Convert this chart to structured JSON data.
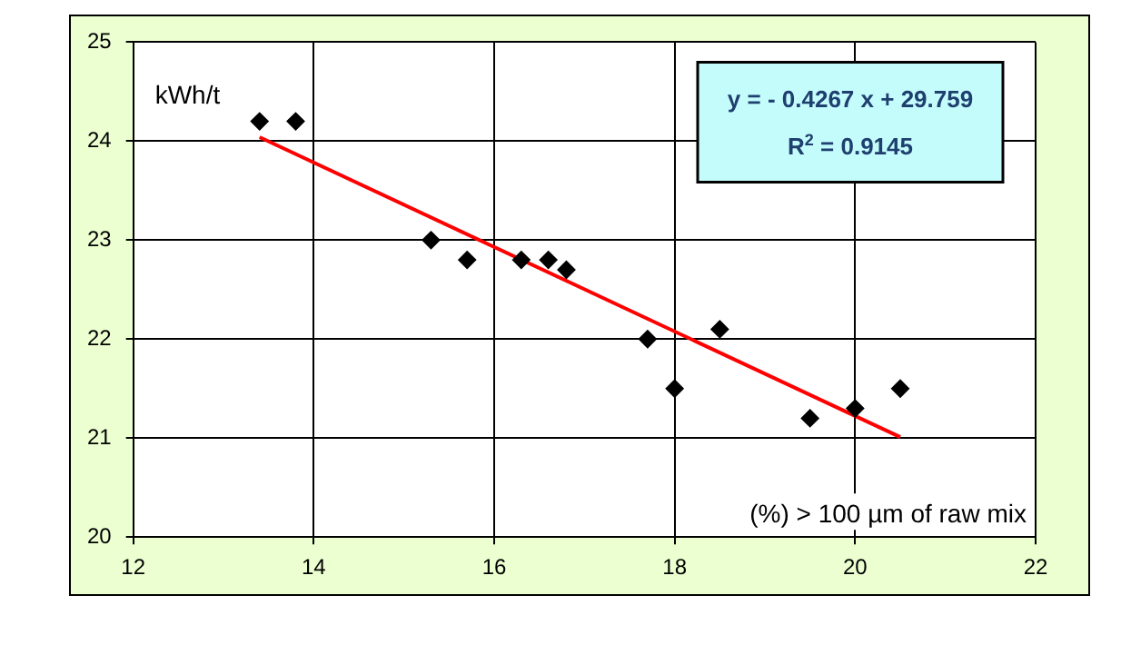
{
  "chart_data": {
    "type": "scatter",
    "xlabel": "(%) > 100 µm of raw mix",
    "ylabel": "kWh/t",
    "annotations": [
      "y = - 0.4267 x + 29.759",
      "R$^{2}$ = 0.9145"
    ],
    "x": [
      13.4,
      13.8,
      15.3,
      15.7,
      16.3,
      16.6,
      16.8,
      17.7,
      18.0,
      18.5,
      19.5,
      20.0,
      20.5
    ],
    "series": [
      {
        "color": "#000000",
        "marker": "diamond",
        "values": [
          24.2,
          24.2,
          23.0,
          22.8,
          22.8,
          22.8,
          22.7,
          22.0,
          21.5,
          22.1,
          21.2,
          21.3,
          21.5
        ]
      },
      {
        "type": "line",
        "marker": "none",
        "color": "#ff0000",
        "x": [
          13.4,
          20.5
        ],
        "values": [
          24.04,
          21.01
        ]
      }
    ],
    "xlim": [
      12,
      22
    ],
    "xticks": [
      12,
      14,
      16,
      18,
      20,
      22
    ],
    "ylim": [
      20,
      25
    ],
    "yticks": [
      20,
      21,
      22,
      23,
      24,
      25
    ],
    "grid": true,
    "legend": false
  }
}
